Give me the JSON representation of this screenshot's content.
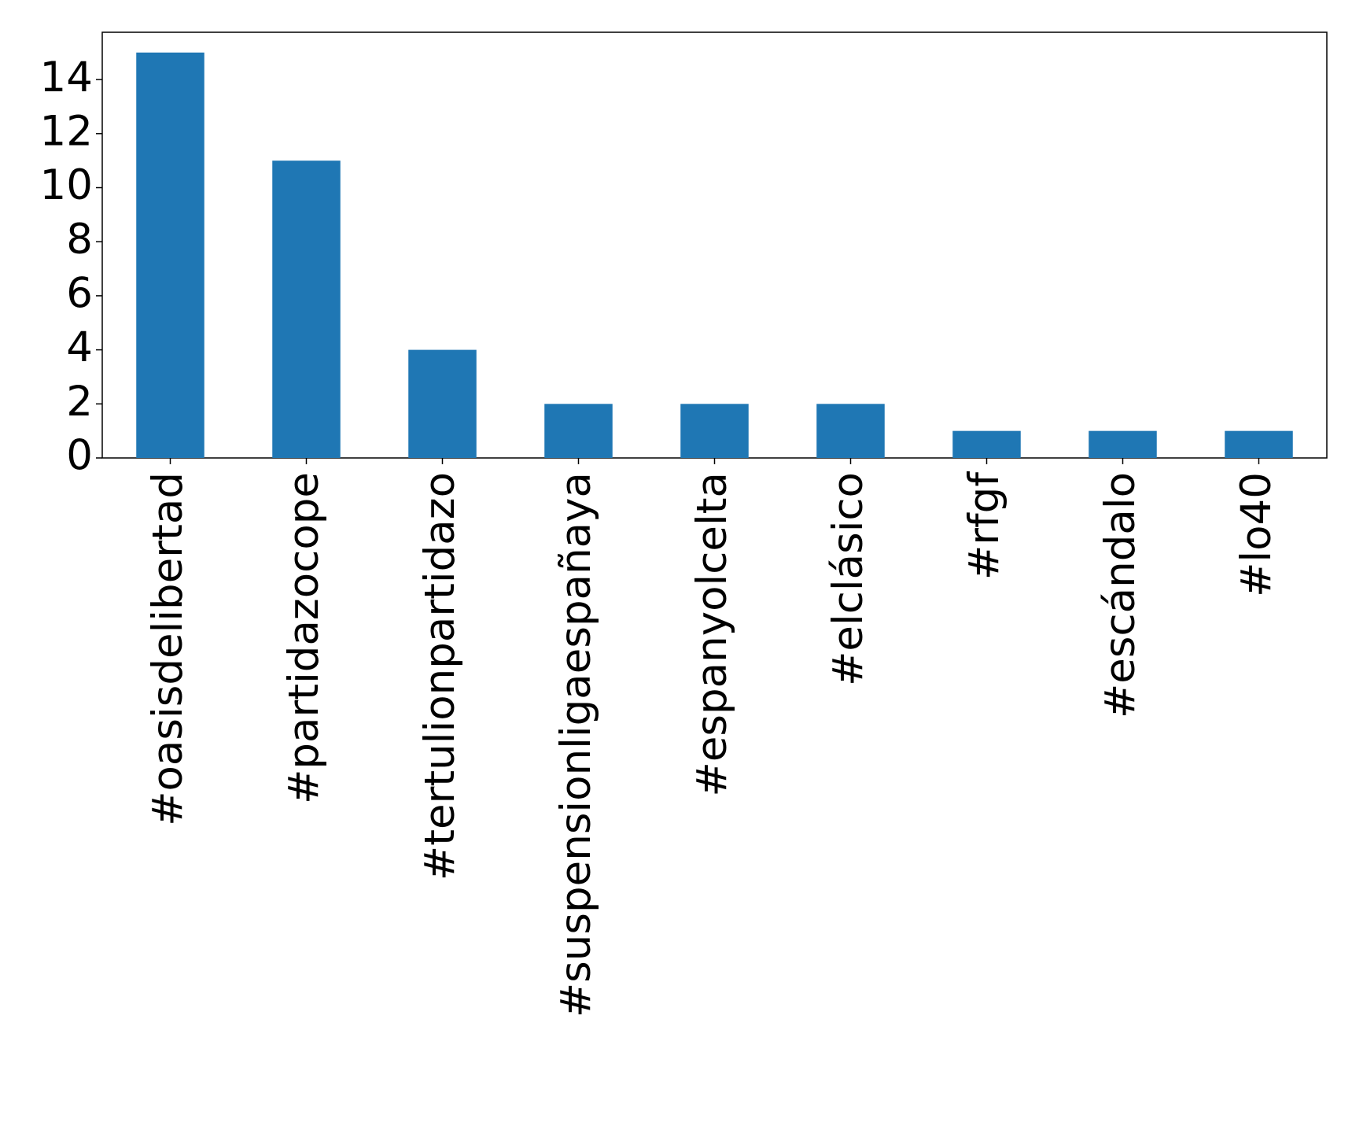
{
  "chart_data": {
    "type": "bar",
    "categories": [
      "#oasisdelibertad",
      "#partidazocope",
      "#tertulionpartidazo",
      "#suspensionligaespañaya",
      "#espanyolcelta",
      "#elclásico",
      "#rfgf",
      "#escándalo",
      "#lo40"
    ],
    "values": [
      15,
      11,
      4,
      2,
      2,
      2,
      1,
      1,
      1
    ],
    "color": "#1f77b4",
    "ylim": [
      0,
      15.75
    ],
    "yticks": [
      0,
      2,
      4,
      6,
      8,
      10,
      12,
      14
    ],
    "grid": false
  }
}
